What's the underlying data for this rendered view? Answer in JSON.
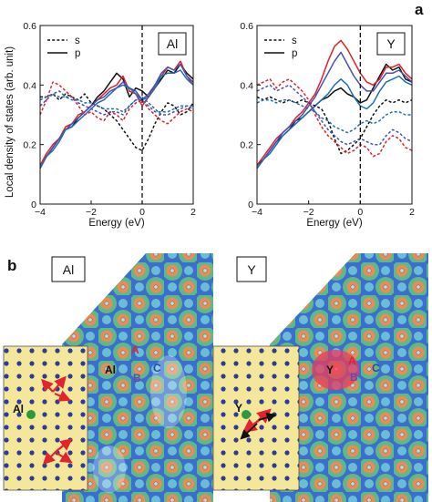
{
  "panel_a_letter": "a",
  "panel_b_letter": "b",
  "colors": {
    "black": "#111111",
    "red": "#e0202a",
    "purple": "#4a4fb0",
    "blue": "#1f6fb2",
    "map_blue": "#3a6fd0",
    "map_green": "#5fb889",
    "map_orange": "#e58d55",
    "inset_bg": "#f4e79a",
    "inset_dot": "#2c3a9a",
    "arrow_red": "#e2242c",
    "solute_green": "#2a9a3a"
  },
  "chart_data": [
    {
      "type": "line",
      "element_label": "Al",
      "xlabel": "Energy (eV)",
      "ylabel": "Local density of states (arb. unit)",
      "xlim": [
        -4,
        2
      ],
      "ylim": [
        0,
        0.6
      ],
      "xticks": [
        "−4",
        "−2",
        "0",
        "2"
      ],
      "yticks": [
        "0",
        "0.2",
        "0.4",
        "0.6"
      ],
      "fermi_level": 0,
      "legend": [
        {
          "label": "s",
          "style": "dashed"
        },
        {
          "label": "p",
          "style": "solid"
        }
      ],
      "x": [
        -4.0,
        -3.75,
        -3.5,
        -3.25,
        -3.0,
        -2.75,
        -2.5,
        -2.25,
        -2.0,
        -1.75,
        -1.5,
        -1.25,
        -1.0,
        -0.75,
        -0.5,
        -0.25,
        0.0,
        0.25,
        0.5,
        0.75,
        1.0,
        1.25,
        1.5,
        1.75,
        2.0
      ],
      "series": [
        {
          "color": "black",
          "style": "solid",
          "values": [
            0.12,
            0.16,
            0.19,
            0.22,
            0.25,
            0.26,
            0.29,
            0.31,
            0.33,
            0.36,
            0.38,
            0.41,
            0.44,
            0.42,
            0.36,
            0.39,
            0.38,
            0.36,
            0.39,
            0.42,
            0.45,
            0.44,
            0.47,
            0.44,
            0.42
          ]
        },
        {
          "color": "red",
          "style": "solid",
          "values": [
            0.13,
            0.17,
            0.2,
            0.22,
            0.26,
            0.27,
            0.3,
            0.31,
            0.33,
            0.35,
            0.37,
            0.39,
            0.4,
            0.43,
            0.38,
            0.37,
            0.33,
            0.36,
            0.4,
            0.43,
            0.46,
            0.45,
            0.48,
            0.43,
            0.4
          ]
        },
        {
          "color": "purple",
          "style": "solid",
          "values": [
            0.12,
            0.16,
            0.19,
            0.22,
            0.25,
            0.27,
            0.29,
            0.31,
            0.33,
            0.35,
            0.36,
            0.38,
            0.39,
            0.41,
            0.39,
            0.38,
            0.35,
            0.37,
            0.4,
            0.44,
            0.46,
            0.45,
            0.47,
            0.43,
            0.41
          ]
        },
        {
          "color": "blue",
          "style": "solid",
          "values": [
            0.12,
            0.16,
            0.18,
            0.21,
            0.25,
            0.26,
            0.28,
            0.3,
            0.32,
            0.34,
            0.35,
            0.37,
            0.39,
            0.4,
            0.39,
            0.37,
            0.35,
            0.36,
            0.39,
            0.43,
            0.44,
            0.44,
            0.45,
            0.42,
            0.4
          ]
        },
        {
          "color": "black",
          "style": "dashed",
          "values": [
            0.36,
            0.36,
            0.37,
            0.35,
            0.37,
            0.36,
            0.35,
            0.37,
            0.34,
            0.33,
            0.32,
            0.3,
            0.28,
            0.25,
            0.22,
            0.19,
            0.18,
            0.22,
            0.27,
            0.31,
            0.34,
            0.33,
            0.3,
            0.31,
            0.34
          ]
        },
        {
          "color": "red",
          "style": "dashed",
          "values": [
            0.3,
            0.35,
            0.41,
            0.4,
            0.38,
            0.36,
            0.33,
            0.3,
            0.31,
            0.29,
            0.28,
            0.31,
            0.3,
            0.28,
            0.32,
            0.34,
            0.35,
            0.32,
            0.3,
            0.28,
            0.27,
            0.29,
            0.31,
            0.32,
            0.31
          ]
        },
        {
          "color": "purple",
          "style": "dashed",
          "values": [
            0.33,
            0.35,
            0.37,
            0.38,
            0.36,
            0.36,
            0.34,
            0.33,
            0.32,
            0.31,
            0.3,
            0.31,
            0.31,
            0.3,
            0.33,
            0.35,
            0.36,
            0.34,
            0.32,
            0.3,
            0.3,
            0.31,
            0.32,
            0.33,
            0.32
          ]
        },
        {
          "color": "blue",
          "style": "dashed",
          "values": [
            0.35,
            0.36,
            0.37,
            0.36,
            0.36,
            0.35,
            0.35,
            0.34,
            0.34,
            0.33,
            0.32,
            0.32,
            0.32,
            0.31,
            0.33,
            0.35,
            0.35,
            0.33,
            0.31,
            0.31,
            0.31,
            0.32,
            0.33,
            0.33,
            0.33
          ]
        }
      ]
    },
    {
      "type": "line",
      "element_label": "Y",
      "xlabel": "Energy (eV)",
      "ylabel": "",
      "xlim": [
        -4,
        2
      ],
      "ylim": [
        0,
        0.6
      ],
      "xticks": [
        "−4",
        "−2",
        "0",
        "2"
      ],
      "yticks": [
        "0",
        "0.2",
        "0.4",
        "0.6"
      ],
      "fermi_level": 0,
      "legend": [
        {
          "label": "s",
          "style": "dashed"
        },
        {
          "label": "p",
          "style": "solid"
        }
      ],
      "x": [
        -4.0,
        -3.75,
        -3.5,
        -3.25,
        -3.0,
        -2.75,
        -2.5,
        -2.25,
        -2.0,
        -1.75,
        -1.5,
        -1.25,
        -1.0,
        -0.75,
        -0.5,
        -0.25,
        0.0,
        0.25,
        0.5,
        0.75,
        1.0,
        1.25,
        1.5,
        1.75,
        2.0
      ],
      "series": [
        {
          "color": "black",
          "style": "solid",
          "values": [
            0.13,
            0.15,
            0.18,
            0.21,
            0.23,
            0.25,
            0.28,
            0.29,
            0.31,
            0.33,
            0.35,
            0.36,
            0.38,
            0.39,
            0.37,
            0.36,
            0.34,
            0.35,
            0.39,
            0.43,
            0.47,
            0.45,
            0.46,
            0.42,
            0.41
          ]
        },
        {
          "color": "red",
          "style": "solid",
          "values": [
            0.13,
            0.16,
            0.19,
            0.22,
            0.24,
            0.26,
            0.29,
            0.31,
            0.34,
            0.37,
            0.42,
            0.48,
            0.53,
            0.55,
            0.52,
            0.48,
            0.44,
            0.41,
            0.4,
            0.42,
            0.46,
            0.46,
            0.47,
            0.44,
            0.42
          ]
        },
        {
          "color": "purple",
          "style": "solid",
          "values": [
            0.12,
            0.15,
            0.18,
            0.21,
            0.24,
            0.26,
            0.28,
            0.3,
            0.33,
            0.36,
            0.4,
            0.44,
            0.48,
            0.51,
            0.47,
            0.43,
            0.4,
            0.38,
            0.38,
            0.41,
            0.44,
            0.44,
            0.45,
            0.43,
            0.41
          ]
        },
        {
          "color": "blue",
          "style": "solid",
          "values": [
            0.12,
            0.15,
            0.17,
            0.2,
            0.23,
            0.25,
            0.27,
            0.29,
            0.31,
            0.33,
            0.35,
            0.37,
            0.4,
            0.42,
            0.4,
            0.36,
            0.33,
            0.32,
            0.34,
            0.38,
            0.41,
            0.42,
            0.43,
            0.41,
            0.4
          ]
        },
        {
          "color": "black",
          "style": "dashed",
          "values": [
            0.36,
            0.35,
            0.36,
            0.35,
            0.34,
            0.35,
            0.34,
            0.35,
            0.34,
            0.33,
            0.32,
            0.28,
            0.22,
            0.17,
            0.18,
            0.2,
            0.22,
            0.26,
            0.3,
            0.33,
            0.35,
            0.34,
            0.35,
            0.34,
            0.35
          ]
        },
        {
          "color": "red",
          "style": "dashed",
          "values": [
            0.4,
            0.41,
            0.42,
            0.39,
            0.41,
            0.42,
            0.4,
            0.38,
            0.35,
            0.3,
            0.26,
            0.23,
            0.21,
            0.19,
            0.17,
            0.18,
            0.2,
            0.19,
            0.16,
            0.17,
            0.21,
            0.23,
            0.22,
            0.19,
            0.18
          ]
        },
        {
          "color": "purple",
          "style": "dashed",
          "values": [
            0.38,
            0.39,
            0.4,
            0.38,
            0.39,
            0.4,
            0.38,
            0.36,
            0.34,
            0.31,
            0.28,
            0.25,
            0.23,
            0.21,
            0.2,
            0.21,
            0.22,
            0.21,
            0.2,
            0.2,
            0.23,
            0.25,
            0.24,
            0.22,
            0.21
          ]
        },
        {
          "color": "blue",
          "style": "dashed",
          "values": [
            0.34,
            0.35,
            0.35,
            0.34,
            0.35,
            0.35,
            0.34,
            0.33,
            0.32,
            0.31,
            0.29,
            0.28,
            0.26,
            0.25,
            0.24,
            0.25,
            0.27,
            0.28,
            0.27,
            0.28,
            0.3,
            0.31,
            0.31,
            0.3,
            0.3
          ]
        }
      ]
    }
  ],
  "maps": [
    {
      "label": "Al",
      "solute_label": "Al",
      "site_labels": [
        "A",
        "B",
        "C"
      ],
      "inset_solute_label": "Al"
    },
    {
      "label": "Y",
      "solute_label": "Y",
      "site_labels": [
        "A",
        "B",
        "C"
      ],
      "inset_solute_label": "Y"
    }
  ]
}
